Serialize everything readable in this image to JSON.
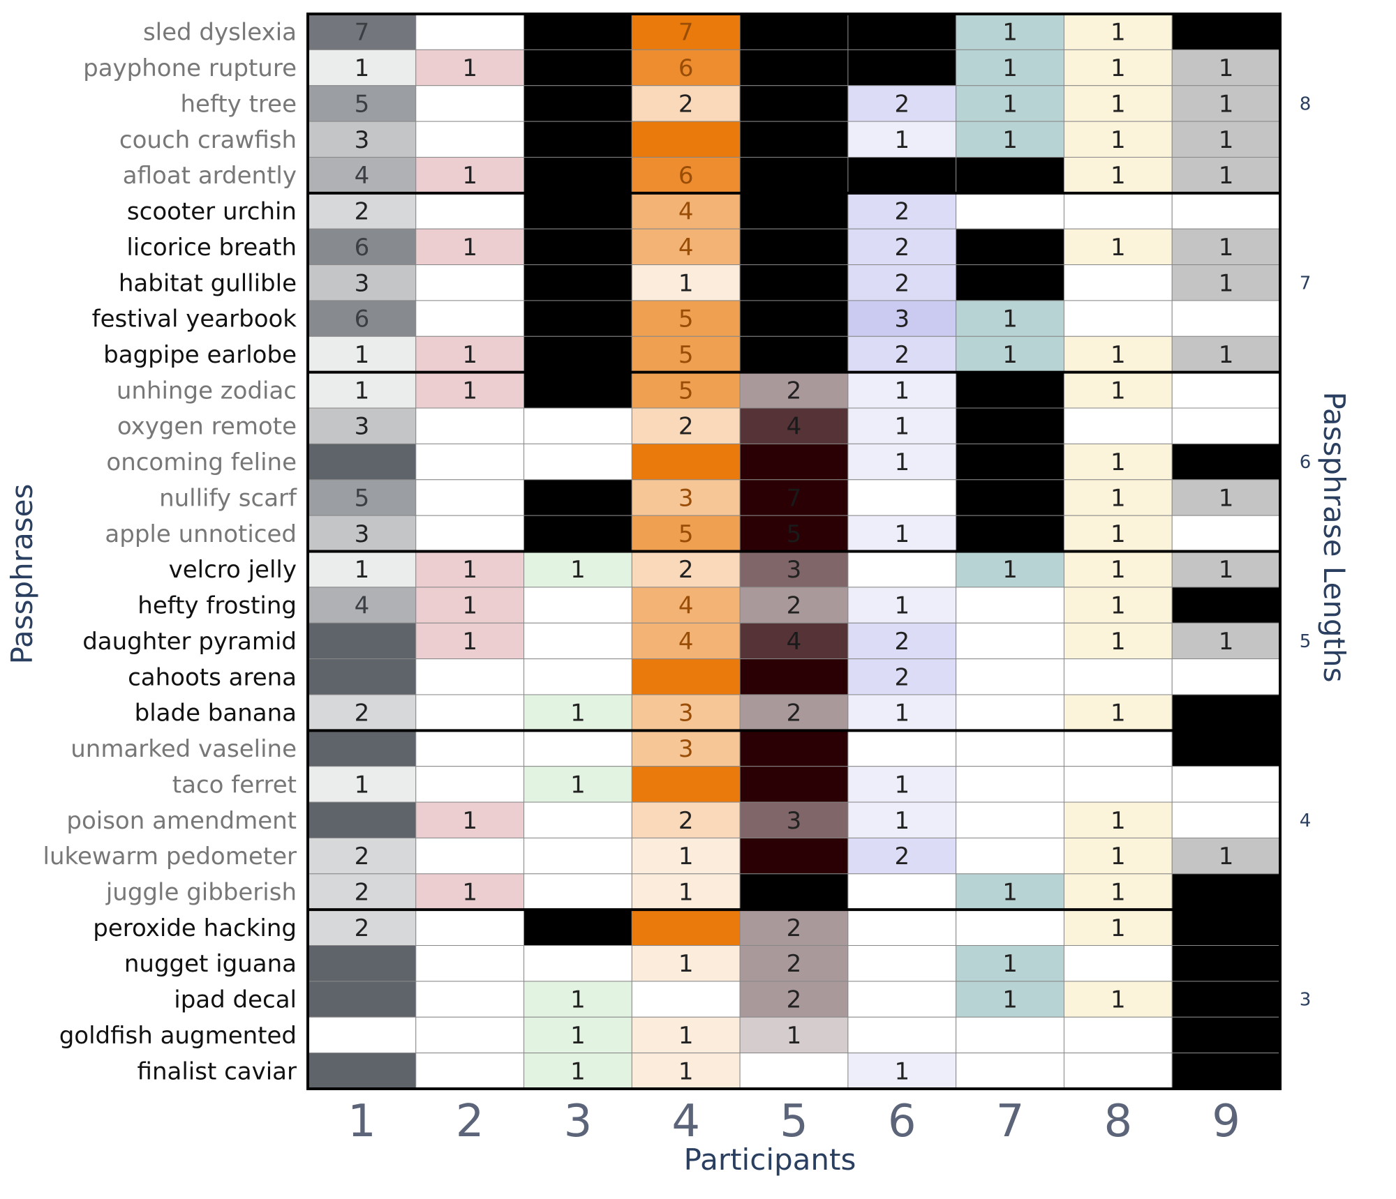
{
  "colors": {
    "axis_text": "#2a3f5f",
    "tick_text": "#5b6478",
    "label_gray": "#777777",
    "label_black": "#111111",
    "cell_border": "#888888",
    "group_border": "#000000",
    "missing": "#000000"
  },
  "chart_data": {
    "type": "heatmap",
    "xlabel": "Participants",
    "ylabel": "Passphrases",
    "y2label": "Passphrase Lengths",
    "x_ticks": [
      "1",
      "2",
      "3",
      "4",
      "5",
      "6",
      "7",
      "8",
      "9"
    ],
    "participants": [
      {
        "id": "1",
        "base": "#5f636a",
        "max": 8
      },
      {
        "id": "2",
        "base": "#d99ca2",
        "max": 2
      },
      {
        "id": "3",
        "base": "#c6e6c4",
        "max": 2
      },
      {
        "id": "4",
        "base": "#ea7a0c",
        "max": 7
      },
      {
        "id": "5",
        "base": "#2b0004",
        "max": 5
      },
      {
        "id": "6",
        "base": "#b9b9ee",
        "max": 4
      },
      {
        "id": "7",
        "base": "#a3c6c6",
        "max": 1.3
      },
      {
        "id": "8",
        "base": "#fbefd0",
        "max": 1.3
      },
      {
        "id": "9",
        "base": "#b2b2b2",
        "max": 1.3
      }
    ],
    "groups": [
      {
        "length": "8",
        "label_color": "gray",
        "rows": [
          {
            "phrase": "sled dyslexia",
            "values": [
              7,
              0,
              null,
              7,
              null,
              null,
              1,
              1,
              null
            ]
          },
          {
            "phrase": "payphone rupture",
            "values": [
              1,
              1,
              null,
              6,
              null,
              null,
              1,
              1,
              1
            ]
          },
          {
            "phrase": "hefty tree",
            "values": [
              5,
              0,
              null,
              2,
              null,
              2,
              1,
              1,
              1
            ]
          },
          {
            "phrase": "couch crawfish",
            "values": [
              3,
              0,
              null,
              8,
              null,
              1,
              1,
              1,
              1
            ]
          },
          {
            "phrase": "afloat ardently",
            "values": [
              4,
              1,
              null,
              6,
              null,
              null,
              null,
              1,
              1
            ]
          }
        ]
      },
      {
        "length": "7",
        "label_color": "black",
        "rows": [
          {
            "phrase": "scooter urchin",
            "values": [
              2,
              0,
              null,
              4,
              null,
              2,
              0,
              0,
              0
            ]
          },
          {
            "phrase": "licorice breath",
            "values": [
              6,
              1,
              null,
              4,
              null,
              2,
              null,
              1,
              1
            ]
          },
          {
            "phrase": "habitat gullible",
            "values": [
              3,
              0,
              null,
              1,
              null,
              2,
              null,
              0,
              1
            ]
          },
          {
            "phrase": "festival yearbook",
            "values": [
              6,
              0,
              null,
              5,
              null,
              3,
              1,
              0,
              0
            ]
          },
          {
            "phrase": "bagpipe earlobe",
            "values": [
              1,
              1,
              null,
              5,
              null,
              2,
              1,
              1,
              1
            ]
          }
        ]
      },
      {
        "length": "6",
        "label_color": "gray",
        "rows": [
          {
            "phrase": "unhinge zodiac",
            "values": [
              1,
              1,
              null,
              5,
              2,
              1,
              null,
              1,
              0
            ]
          },
          {
            "phrase": "oxygen remote",
            "values": [
              3,
              0,
              0,
              2,
              4,
              1,
              null,
              0,
              0
            ]
          },
          {
            "phrase": "oncoming feline",
            "values": [
              8,
              0,
              0,
              8,
              8,
              1,
              null,
              1,
              null
            ]
          },
          {
            "phrase": "nullify scarf",
            "values": [
              5,
              0,
              null,
              3,
              7,
              0,
              null,
              1,
              1
            ]
          },
          {
            "phrase": "apple unnoticed",
            "values": [
              3,
              0,
              null,
              5,
              5,
              1,
              null,
              1,
              0
            ]
          }
        ]
      },
      {
        "length": "5",
        "label_color": "black",
        "rows": [
          {
            "phrase": "velcro jelly",
            "values": [
              1,
              1,
              1,
              2,
              3,
              0,
              1,
              1,
              1
            ]
          },
          {
            "phrase": "hefty frosting",
            "values": [
              4,
              1,
              0,
              4,
              2,
              1,
              0,
              1,
              null
            ]
          },
          {
            "phrase": "daughter pyramid",
            "values": [
              8,
              1,
              0,
              4,
              4,
              2,
              0,
              1,
              1
            ]
          },
          {
            "phrase": "cahoots arena",
            "values": [
              8,
              0,
              0,
              8,
              8,
              2,
              0,
              0,
              0
            ]
          },
          {
            "phrase": "blade banana",
            "values": [
              2,
              0,
              1,
              3,
              2,
              1,
              0,
              1,
              null
            ]
          }
        ]
      },
      {
        "length": "4",
        "label_color": "gray",
        "rows": [
          {
            "phrase": "unmarked vaseline",
            "values": [
              8,
              0,
              0,
              3,
              8,
              0,
              0,
              0,
              null
            ]
          },
          {
            "phrase": "taco ferret",
            "values": [
              1,
              0,
              1,
              8,
              8,
              1,
              0,
              0,
              0
            ]
          },
          {
            "phrase": "poison amendment",
            "values": [
              8,
              1,
              0,
              2,
              3,
              1,
              0,
              1,
              0
            ]
          },
          {
            "phrase": "lukewarm pedometer",
            "values": [
              2,
              0,
              0,
              1,
              8,
              2,
              0,
              1,
              1
            ]
          },
          {
            "phrase": "juggle gibberish",
            "values": [
              2,
              1,
              0,
              1,
              null,
              0,
              1,
              1,
              null
            ]
          }
        ]
      },
      {
        "length": "3",
        "label_color": "black",
        "rows": [
          {
            "phrase": "peroxide hacking",
            "values": [
              2,
              0,
              null,
              8,
              2,
              0,
              0,
              1,
              null
            ]
          },
          {
            "phrase": "nugget iguana",
            "values": [
              8,
              0,
              0,
              1,
              2,
              0,
              1,
              0,
              null
            ]
          },
          {
            "phrase": "ipad decal",
            "values": [
              8,
              0,
              1,
              0,
              2,
              0,
              1,
              1,
              null
            ]
          },
          {
            "phrase": "goldfish augmented",
            "values": [
              0,
              0,
              1,
              1,
              1,
              0,
              0,
              0,
              null
            ]
          },
          {
            "phrase": "finalist caviar",
            "values": [
              8,
              0,
              1,
              1,
              0,
              1,
              0,
              0,
              null
            ]
          }
        ]
      }
    ]
  }
}
